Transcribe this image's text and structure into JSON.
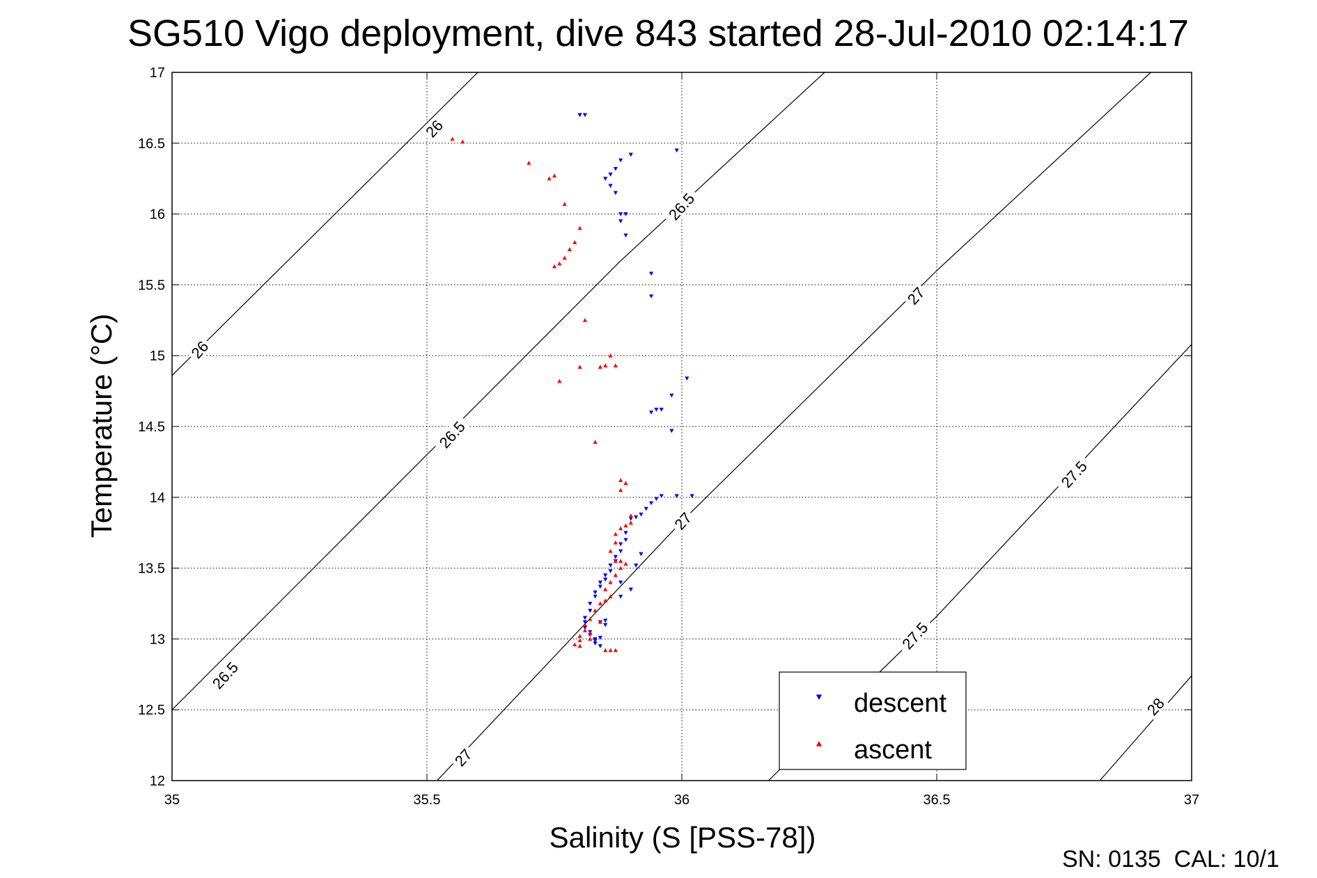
{
  "chart_data": {
    "type": "scatter",
    "title": "SG510 Vigo deployment, dive 843 started 28-Jul-2010 02:14:17",
    "xlabel": "Salinity (S [PSS-78])",
    "ylabel": "Temperature (°C)",
    "xlim": [
      35,
      37
    ],
    "ylim": [
      12,
      17
    ],
    "xticks": [
      "35",
      "35.5",
      "36",
      "36.5",
      "37"
    ],
    "yticks": [
      "12",
      "12.5",
      "13",
      "13.5",
      "14",
      "14.5",
      "15",
      "15.5",
      "16",
      "16.5",
      "17"
    ],
    "grid": true,
    "legend_position": "bottom-right",
    "footer": "SN: 0135  CAL: 10/1",
    "colors": {
      "descent": "#0000ff",
      "ascent": "#ff0000"
    },
    "series": [
      {
        "name": "descent",
        "marker": "triangle-down",
        "color": "#0000ff",
        "points": [
          [
            35.8,
            16.7
          ],
          [
            35.81,
            16.7
          ],
          [
            35.8,
            16.7
          ],
          [
            35.99,
            16.45
          ],
          [
            35.9,
            16.42
          ],
          [
            35.88,
            16.38
          ],
          [
            35.87,
            16.32
          ],
          [
            35.86,
            16.28
          ],
          [
            35.85,
            16.25
          ],
          [
            35.86,
            16.2
          ],
          [
            35.87,
            16.15
          ],
          [
            35.88,
            16.0
          ],
          [
            35.89,
            16.0
          ],
          [
            35.88,
            15.95
          ],
          [
            35.89,
            15.85
          ],
          [
            35.94,
            15.58
          ],
          [
            35.94,
            15.42
          ],
          [
            36.01,
            14.84
          ],
          [
            35.98,
            14.72
          ],
          [
            35.96,
            14.62
          ],
          [
            35.94,
            14.6
          ],
          [
            35.95,
            14.62
          ],
          [
            35.98,
            14.47
          ],
          [
            36.02,
            14.01
          ],
          [
            35.99,
            14.01
          ],
          [
            35.96,
            14.01
          ],
          [
            35.95,
            13.99
          ],
          [
            35.94,
            13.96
          ],
          [
            35.93,
            13.92
          ],
          [
            35.92,
            13.88
          ],
          [
            35.91,
            13.86
          ],
          [
            35.9,
            13.85
          ],
          [
            35.89,
            13.75
          ],
          [
            35.89,
            13.7
          ],
          [
            35.88,
            13.67
          ],
          [
            35.88,
            13.62
          ],
          [
            35.87,
            13.58
          ],
          [
            35.87,
            13.55
          ],
          [
            35.86,
            13.52
          ],
          [
            35.86,
            13.48
          ],
          [
            35.85,
            13.45
          ],
          [
            35.85,
            13.42
          ],
          [
            35.84,
            13.4
          ],
          [
            35.84,
            13.37
          ],
          [
            35.83,
            13.33
          ],
          [
            35.83,
            13.3
          ],
          [
            35.82,
            13.25
          ],
          [
            35.82,
            13.2
          ],
          [
            35.81,
            13.15
          ],
          [
            35.81,
            13.12
          ],
          [
            35.81,
            13.08
          ],
          [
            35.82,
            13.05
          ],
          [
            35.82,
            13.03
          ],
          [
            35.83,
            13.0
          ],
          [
            35.83,
            12.97
          ],
          [
            35.84,
            12.95
          ],
          [
            35.83,
            12.99
          ],
          [
            35.84,
            13.01
          ],
          [
            35.85,
            13.1
          ],
          [
            35.84,
            13.12
          ],
          [
            35.85,
            13.13
          ],
          [
            35.88,
            13.3
          ],
          [
            35.9,
            13.35
          ],
          [
            35.88,
            13.4
          ],
          [
            35.91,
            13.52
          ],
          [
            35.92,
            13.6
          ]
        ]
      },
      {
        "name": "ascent",
        "marker": "triangle-up",
        "color": "#ff0000",
        "points": [
          [
            35.55,
            16.53
          ],
          [
            35.57,
            16.51
          ],
          [
            35.7,
            16.36
          ],
          [
            35.75,
            16.27
          ],
          [
            35.74,
            16.25
          ],
          [
            35.77,
            16.07
          ],
          [
            35.8,
            15.9
          ],
          [
            35.79,
            15.8
          ],
          [
            35.78,
            15.75
          ],
          [
            35.77,
            15.69
          ],
          [
            35.76,
            15.65
          ],
          [
            35.75,
            15.63
          ],
          [
            35.81,
            15.25
          ],
          [
            35.86,
            15.0
          ],
          [
            35.85,
            14.93
          ],
          [
            35.87,
            14.93
          ],
          [
            35.8,
            14.92
          ],
          [
            35.84,
            14.92
          ],
          [
            35.76,
            14.82
          ],
          [
            35.83,
            14.39
          ],
          [
            35.88,
            14.12
          ],
          [
            35.89,
            14.1
          ],
          [
            35.88,
            14.05
          ],
          [
            35.9,
            13.87
          ],
          [
            35.9,
            13.82
          ],
          [
            35.89,
            13.8
          ],
          [
            35.88,
            13.78
          ],
          [
            35.87,
            13.74
          ],
          [
            35.87,
            13.68
          ],
          [
            35.86,
            13.62
          ],
          [
            35.87,
            13.55
          ],
          [
            35.88,
            13.55
          ],
          [
            35.89,
            13.53
          ],
          [
            35.88,
            13.5
          ],
          [
            35.87,
            13.45
          ],
          [
            35.86,
            13.4
          ],
          [
            35.85,
            13.35
          ],
          [
            35.86,
            13.3
          ],
          [
            35.85,
            13.27
          ],
          [
            35.84,
            13.25
          ],
          [
            35.83,
            13.2
          ],
          [
            35.82,
            13.14
          ],
          [
            35.81,
            13.1
          ],
          [
            35.81,
            13.06
          ],
          [
            35.8,
            13.02
          ],
          [
            35.8,
            12.99
          ],
          [
            35.79,
            12.96
          ],
          [
            35.8,
            12.95
          ],
          [
            35.82,
            13.0
          ],
          [
            35.82,
            13.04
          ],
          [
            35.84,
            13.12
          ],
          [
            35.85,
            12.92
          ],
          [
            35.86,
            12.92
          ],
          [
            35.87,
            12.92
          ]
        ]
      }
    ],
    "isopycnals": [
      {
        "label": "26",
        "points": [
          [
            35.0,
            14.86
          ],
          [
            35.6,
            17.0
          ]
        ]
      },
      {
        "label": "26.5",
        "points": [
          [
            35.0,
            12.5
          ],
          [
            35.88,
            15.67
          ],
          [
            36.28,
            17.0
          ]
        ]
      },
      {
        "label": "27",
        "points": [
          [
            35.52,
            12.0
          ],
          [
            36.0,
            13.83
          ],
          [
            36.5,
            15.6
          ],
          [
            36.92,
            17.0
          ]
        ]
      },
      {
        "label": "27.5",
        "points": [
          [
            36.17,
            12.0
          ],
          [
            36.5,
            13.16
          ],
          [
            37.0,
            15.08
          ]
        ]
      },
      {
        "label": "28",
        "points": [
          [
            36.82,
            12.0
          ],
          [
            37.0,
            12.74
          ]
        ]
      }
    ],
    "contour_labels": [
      {
        "text": "26",
        "at": [
          35.515,
          16.6
        ]
      },
      {
        "text": "26",
        "at": [
          35.055,
          15.04
        ]
      },
      {
        "text": "26.5",
        "at": [
          36.0,
          16.05
        ]
      },
      {
        "text": "26.5",
        "at": [
          35.55,
          14.44
        ]
      },
      {
        "text": "26.5",
        "at": [
          35.105,
          12.74
        ]
      },
      {
        "text": "27",
        "at": [
          36.46,
          15.42
        ]
      },
      {
        "text": "27",
        "at": [
          36.003,
          13.83
        ]
      },
      {
        "text": "27",
        "at": [
          35.572,
          12.16
        ]
      },
      {
        "text": "27.5",
        "at": [
          36.77,
          14.16
        ]
      },
      {
        "text": "27.5",
        "at": [
          36.458,
          13.02
        ]
      },
      {
        "text": "28",
        "at": [
          36.93,
          12.52
        ]
      }
    ]
  }
}
